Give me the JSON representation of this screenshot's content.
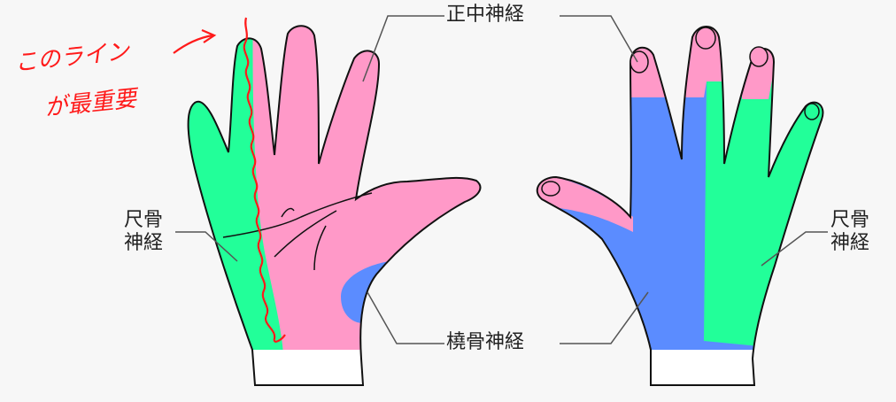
{
  "labels": {
    "median_nerve": "正中神経",
    "radial_nerve": "橈骨神経",
    "ulnar_nerve_left_line1": "尺骨",
    "ulnar_nerve_left_line2": "神経",
    "ulnar_nerve_right_line1": "尺骨",
    "ulnar_nerve_right_line2": "神経"
  },
  "annotation": {
    "line1": "このライン",
    "line2": "が最重要"
  },
  "colors": {
    "median": "#ff99c8",
    "ulnar": "#22ff99",
    "radial": "#5b8cff",
    "wrist": "#ffffff",
    "outline": "#111111",
    "annotation": "#ff1a1a",
    "background": "#f7f7f7"
  }
}
